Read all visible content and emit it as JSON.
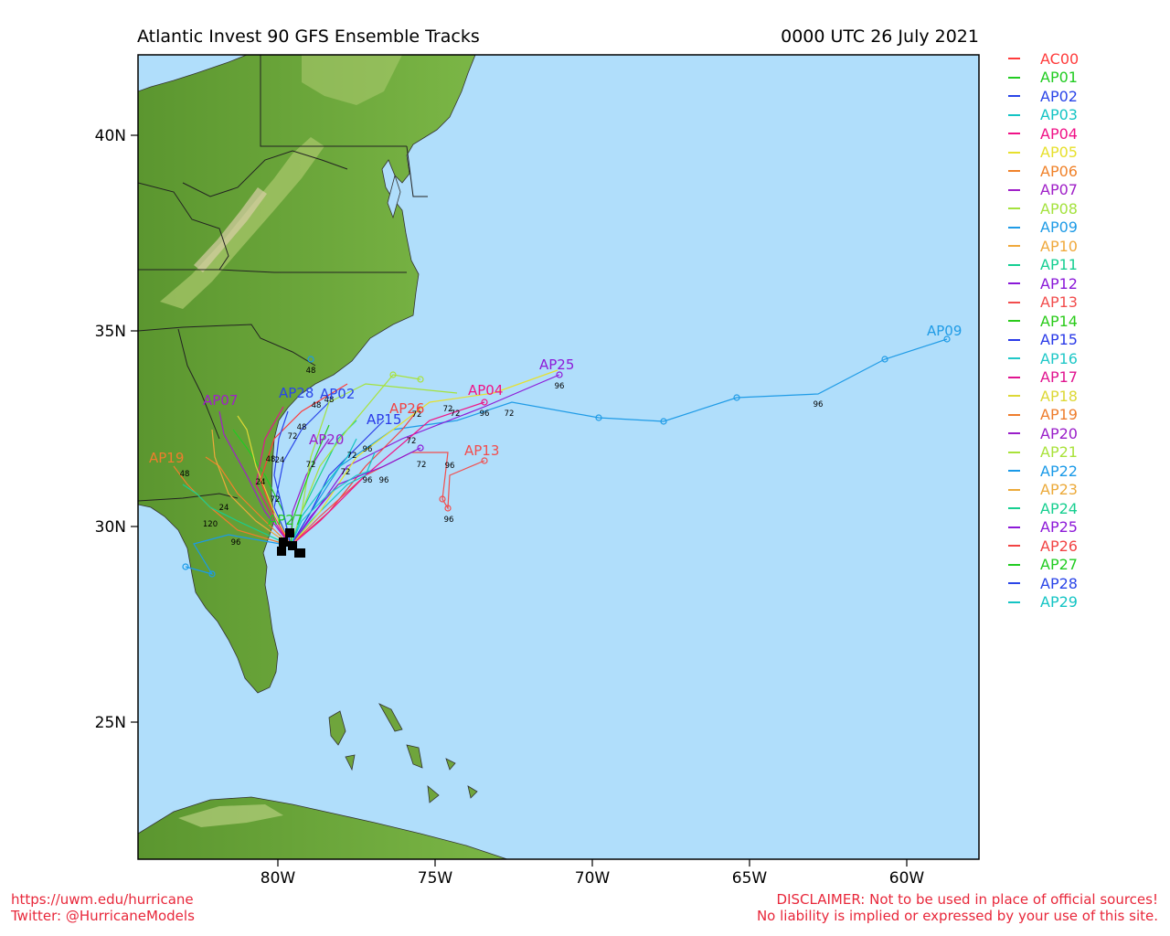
{
  "header": {
    "title": "Atlantic Invest 90 GFS Ensemble Tracks",
    "datetime": "0000 UTC 26 July 2021"
  },
  "map": {
    "lat_labels": [
      "40N",
      "35N",
      "30N",
      "25N"
    ],
    "lon_labels": [
      "80W",
      "75W",
      "70W",
      "65W",
      "60W"
    ],
    "ocean_color": "#b0defb",
    "land_color": "#6fa53c"
  },
  "legend": [
    {
      "name": "AC00",
      "color": "#ff3b3b"
    },
    {
      "name": "AP01",
      "color": "#22cc22"
    },
    {
      "name": "AP02",
      "color": "#2a45e8"
    },
    {
      "name": "AP03",
      "color": "#14c4c4"
    },
    {
      "name": "AP04",
      "color": "#f01287"
    },
    {
      "name": "AP05",
      "color": "#e7e02d"
    },
    {
      "name": "AP06",
      "color": "#f0822a"
    },
    {
      "name": "AP07",
      "color": "#a020c8"
    },
    {
      "name": "AP08",
      "color": "#a4e23d"
    },
    {
      "name": "AP09",
      "color": "#1f9be6"
    },
    {
      "name": "AP10",
      "color": "#f0a93c"
    },
    {
      "name": "AP11",
      "color": "#16cf92"
    },
    {
      "name": "AP12",
      "color": "#8a18d8"
    },
    {
      "name": "AP13",
      "color": "#f24d4d"
    },
    {
      "name": "AP14",
      "color": "#2acb1a"
    },
    {
      "name": "AP15",
      "color": "#2a3ae8"
    },
    {
      "name": "AP16",
      "color": "#20c8c8"
    },
    {
      "name": "AP17",
      "color": "#e01590"
    },
    {
      "name": "AP18",
      "color": "#ddd836"
    },
    {
      "name": "AP19",
      "color": "#ee7d2d"
    },
    {
      "name": "AP20",
      "color": "#9a1ec9"
    },
    {
      "name": "AP21",
      "color": "#a9e23a"
    },
    {
      "name": "AP22",
      "color": "#1a9ae8"
    },
    {
      "name": "AP23",
      "color": "#ecaa3a"
    },
    {
      "name": "AP24",
      "color": "#17cf90"
    },
    {
      "name": "AP25",
      "color": "#8d1ad8"
    },
    {
      "name": "AP26",
      "color": "#f24444"
    },
    {
      "name": "AP27",
      "color": "#22cc22"
    },
    {
      "name": "AP28",
      "color": "#2a45e8"
    },
    {
      "name": "AP29",
      "color": "#14c4c4"
    }
  ],
  "track_labels": [
    {
      "name": "AP09",
      "color": "#1f9be6"
    },
    {
      "name": "AP25",
      "color": "#8d1ad8"
    },
    {
      "name": "AP13",
      "color": "#f24d4d"
    },
    {
      "name": "AP07",
      "color": "#a020c8"
    },
    {
      "name": "AP02",
      "color": "#2a45e8"
    },
    {
      "name": "AP28",
      "color": "#2a45e8"
    },
    {
      "name": "AP15",
      "color": "#2a3ae8"
    },
    {
      "name": "AP20",
      "color": "#9a1ec9"
    },
    {
      "name": "AP27",
      "color": "#22cc22"
    },
    {
      "name": "AP19",
      "color": "#ee7d2d"
    },
    {
      "name": "AP26",
      "color": "#f24444"
    },
    {
      "name": "AP04",
      "color": "#f01287"
    }
  ],
  "footer": {
    "left_line1": "https://uwm.edu/hurricane",
    "left_line2": "Twitter: @HurricaneModels",
    "right_line1": "DISCLAIMER: Not to be used in place of official sources!",
    "right_line2": "No liability is implied or expressed by your use of this site."
  }
}
